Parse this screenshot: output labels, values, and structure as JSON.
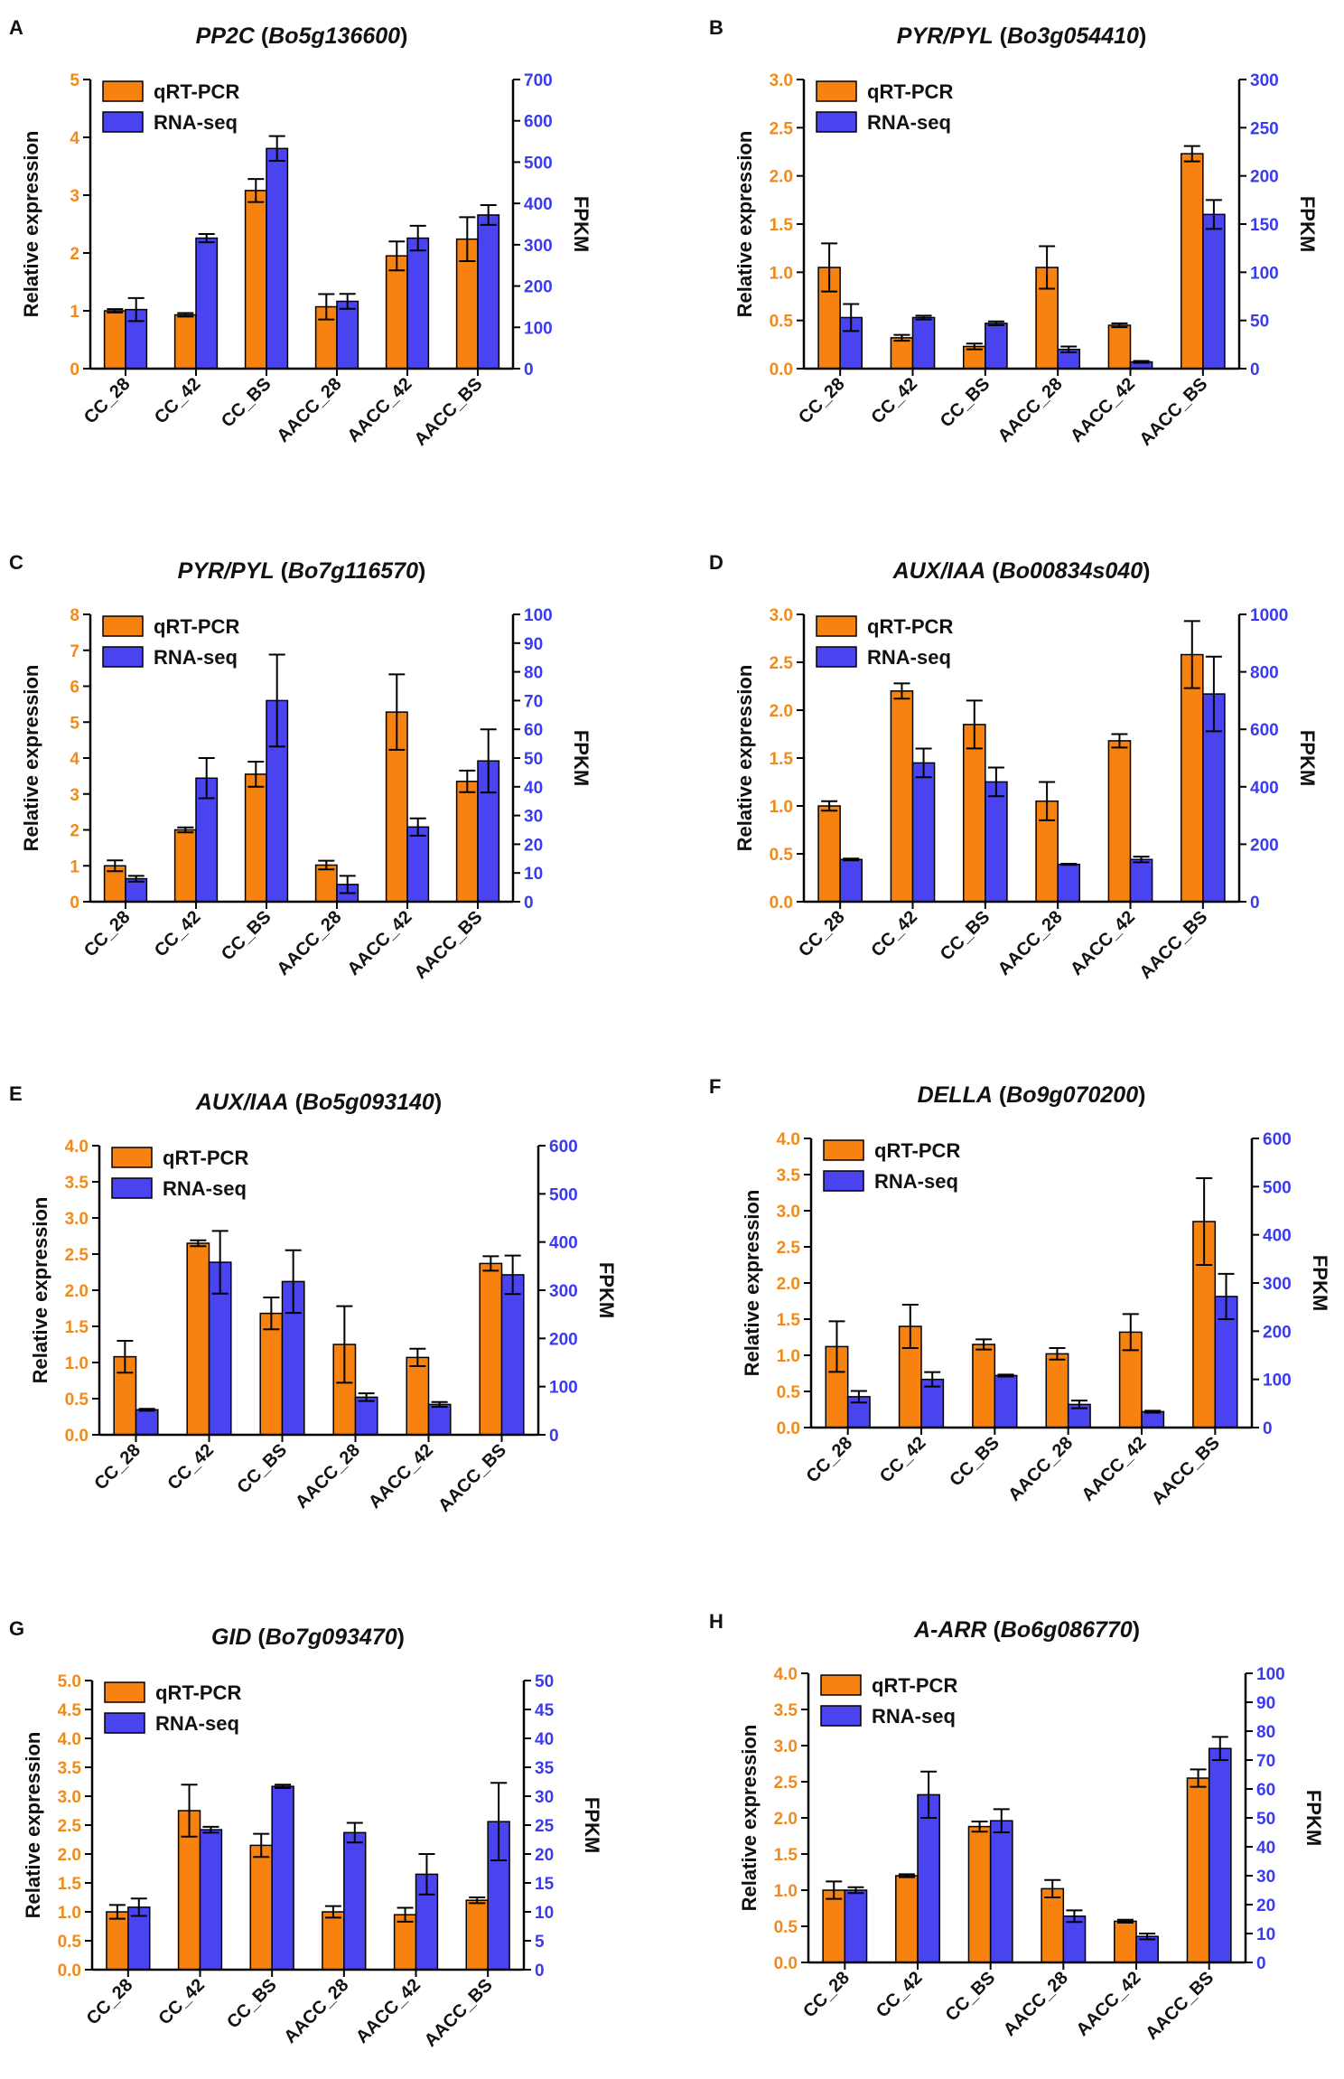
{
  "colors": {
    "left_axis": "#F08A1D",
    "right_axis": "#3B3BEE",
    "bar_q": "#F7820F",
    "bar_r": "#4A44F0",
    "text": "#111111"
  },
  "chart_data": [
    {
      "panel": "A",
      "type": "bar",
      "title_gene": "PP2C",
      "title_id": "Bo5g136600",
      "categories": [
        "CC_28",
        "CC_42",
        "CC_BS",
        "AACC_28",
        "AACC_42",
        "AACC_BS"
      ],
      "ylabel": "Relative expression",
      "y2label": "FPKM",
      "ylim": [
        0,
        5
      ],
      "yticks": [
        "0",
        "1",
        "2",
        "3",
        "4",
        "5"
      ],
      "y2lim": [
        0,
        700
      ],
      "y2ticks": [
        "0",
        "100",
        "200",
        "300",
        "400",
        "500",
        "600",
        "700"
      ],
      "legend": [
        "qRT-PCR",
        "RNA-seq"
      ],
      "series": [
        {
          "name": "qRT-PCR",
          "values": [
            1.0,
            0.93,
            3.08,
            1.07,
            1.95,
            2.24
          ],
          "errors": [
            0.03,
            0.03,
            0.2,
            0.22,
            0.25,
            0.38
          ]
        },
        {
          "name": "RNA-seq",
          "values": [
            143,
            316,
            533,
            163,
            316,
            372
          ],
          "errors": [
            28,
            10,
            30,
            18,
            30,
            24
          ]
        }
      ]
    },
    {
      "panel": "B",
      "type": "bar",
      "title_gene": "PYR/PYL",
      "title_id": "Bo3g054410",
      "categories": [
        "CC_28",
        "CC_42",
        "CC_BS",
        "AACC_28",
        "AACC_42",
        "AACC_BS"
      ],
      "ylabel": "Relative expression",
      "y2label": "FPKM",
      "ylim": [
        0,
        3
      ],
      "yticks": [
        "0.0",
        "0.5",
        "1.0",
        "1.5",
        "2.0",
        "2.5",
        "3.0"
      ],
      "y2lim": [
        0,
        300
      ],
      "y2ticks": [
        "0",
        "50",
        "100",
        "150",
        "200",
        "250",
        "300"
      ],
      "legend": [
        "qRT-PCR",
        "RNA-seq"
      ],
      "series": [
        {
          "name": "qRT-PCR",
          "values": [
            1.05,
            0.32,
            0.23,
            1.05,
            0.45,
            2.23
          ],
          "errors": [
            0.25,
            0.03,
            0.03,
            0.22,
            0.02,
            0.08
          ]
        },
        {
          "name": "RNA-seq",
          "values": [
            53,
            53,
            47,
            20,
            7,
            160
          ],
          "errors": [
            14,
            2,
            2,
            3,
            1,
            15
          ]
        }
      ]
    },
    {
      "panel": "C",
      "type": "bar",
      "title_gene": "PYR/PYL",
      "title_id": "Bo7g116570",
      "categories": [
        "CC_28",
        "CC_42",
        "CC_BS",
        "AACC_28",
        "AACC_42",
        "AACC_BS"
      ],
      "ylabel": "Relative expression",
      "y2label": "FPKM",
      "ylim": [
        0,
        8
      ],
      "yticks": [
        "0",
        "1",
        "2",
        "3",
        "4",
        "5",
        "6",
        "7",
        "8"
      ],
      "y2lim": [
        0,
        100
      ],
      "y2ticks": [
        "0",
        "10",
        "20",
        "30",
        "40",
        "50",
        "60",
        "70",
        "80",
        "90",
        "100"
      ],
      "legend": [
        "qRT-PCR",
        "RNA-seq"
      ],
      "series": [
        {
          "name": "qRT-PCR",
          "values": [
            1.0,
            2.0,
            3.55,
            1.02,
            5.28,
            3.35
          ],
          "errors": [
            0.15,
            0.07,
            0.35,
            0.12,
            1.05,
            0.3
          ]
        },
        {
          "name": "RNA-seq",
          "values": [
            8,
            43,
            70,
            6,
            26,
            49
          ],
          "errors": [
            1,
            7,
            16,
            3,
            3,
            11
          ]
        }
      ]
    },
    {
      "panel": "D",
      "type": "bar",
      "title_gene": "AUX/IAA",
      "title_id": "Bo00834s040",
      "categories": [
        "CC_28",
        "CC_42",
        "CC_BS",
        "AACC_28",
        "AACC_42",
        "AACC_BS"
      ],
      "ylabel": "Relative expression",
      "y2label": "FPKM",
      "ylim": [
        0,
        3
      ],
      "yticks": [
        "0.0",
        "0.5",
        "1.0",
        "1.5",
        "2.0",
        "2.5",
        "3.0"
      ],
      "y2lim": [
        0,
        1000
      ],
      "y2ticks": [
        "0",
        "200",
        "400",
        "600",
        "800",
        "1000"
      ],
      "legend": [
        "qRT-PCR",
        "RNA-seq"
      ],
      "series": [
        {
          "name": "qRT-PCR",
          "values": [
            1.0,
            2.2,
            1.85,
            1.05,
            1.68,
            2.58
          ],
          "errors": [
            0.05,
            0.08,
            0.25,
            0.2,
            0.07,
            0.35
          ]
        },
        {
          "name": "RNA-seq",
          "values": [
            147,
            483,
            417,
            130,
            147,
            723
          ],
          "errors": [
            3,
            50,
            50,
            2,
            10,
            130
          ]
        }
      ]
    },
    {
      "panel": "E",
      "type": "bar",
      "title_gene": "AUX/IAA",
      "title_id": "Bo5g093140",
      "categories": [
        "CC_28",
        "CC_42",
        "CC_BS",
        "AACC_28",
        "AACC_42",
        "AACC_BS"
      ],
      "ylabel": "Relative expression",
      "y2label": "FPKM",
      "ylim": [
        0,
        4
      ],
      "yticks": [
        "0.0",
        "0.5",
        "1.0",
        "1.5",
        "2.0",
        "2.5",
        "3.0",
        "3.5",
        "4.0"
      ],
      "y2lim": [
        0,
        600
      ],
      "y2ticks": [
        "0",
        "100",
        "200",
        "300",
        "400",
        "500",
        "600"
      ],
      "legend": [
        "qRT-PCR",
        "RNA-seq"
      ],
      "series": [
        {
          "name": "qRT-PCR",
          "values": [
            1.08,
            2.65,
            1.68,
            1.25,
            1.07,
            2.37
          ],
          "errors": [
            0.22,
            0.04,
            0.22,
            0.53,
            0.12,
            0.1
          ]
        },
        {
          "name": "RNA-seq",
          "values": [
            52,
            358,
            318,
            78,
            63,
            332
          ],
          "errors": [
            2,
            65,
            65,
            8,
            5,
            40
          ]
        }
      ]
    },
    {
      "panel": "F",
      "type": "bar",
      "title_gene": "DELLA",
      "title_id": "Bo9g070200",
      "categories": [
        "CC_28",
        "CC_42",
        "CC_BS",
        "AACC_28",
        "AACC_42",
        "AACC_BS"
      ],
      "ylabel": "Relative expression",
      "y2label": "FPKM",
      "ylim": [
        0,
        4
      ],
      "yticks": [
        "0.0",
        "0.5",
        "1.0",
        "1.5",
        "2.0",
        "2.5",
        "3.0",
        "3.5",
        "4.0"
      ],
      "y2lim": [
        0,
        600
      ],
      "y2ticks": [
        "0",
        "100",
        "200",
        "300",
        "400",
        "500",
        "600"
      ],
      "legend": [
        "qRT-PCR",
        "RNA-seq"
      ],
      "series": [
        {
          "name": "qRT-PCR",
          "values": [
            1.12,
            1.4,
            1.15,
            1.02,
            1.32,
            2.85
          ],
          "errors": [
            0.35,
            0.3,
            0.07,
            0.08,
            0.25,
            0.6
          ]
        },
        {
          "name": "RNA-seq",
          "values": [
            64,
            100,
            108,
            48,
            33,
            272
          ],
          "errors": [
            12,
            15,
            2,
            8,
            2,
            47
          ]
        }
      ]
    },
    {
      "panel": "G",
      "type": "bar",
      "title_gene": "GID",
      "title_id": "Bo7g093470",
      "categories": [
        "CC_28",
        "CC_42",
        "CC_BS",
        "AACC_28",
        "AACC_42",
        "AACC_BS"
      ],
      "ylabel": "Relative expression",
      "y2label": "FPKM",
      "ylim": [
        0,
        5
      ],
      "yticks": [
        "0.0",
        "0.5",
        "1.0",
        "1.5",
        "2.0",
        "2.5",
        "3.0",
        "3.5",
        "4.0",
        "4.5",
        "5.0"
      ],
      "y2lim": [
        0,
        50
      ],
      "y2ticks": [
        "0",
        "5",
        "10",
        "15",
        "20",
        "25",
        "30",
        "35",
        "40",
        "45",
        "50"
      ],
      "legend": [
        "qRT-PCR",
        "RNA-seq"
      ],
      "series": [
        {
          "name": "qRT-PCR",
          "values": [
            1.0,
            2.75,
            2.15,
            1.0,
            0.95,
            1.2
          ],
          "errors": [
            0.12,
            0.45,
            0.2,
            0.1,
            0.12,
            0.05
          ]
        },
        {
          "name": "RNA-seq",
          "values": [
            10.8,
            24.2,
            31.7,
            23.7,
            16.5,
            25.6
          ],
          "errors": [
            1.5,
            0.5,
            0.3,
            1.7,
            3.5,
            6.7
          ]
        }
      ]
    },
    {
      "panel": "H",
      "type": "bar",
      "title_gene": "A-ARR",
      "title_id": "Bo6g086770",
      "categories": [
        "CC_28",
        "CC_42",
        "CC_BS",
        "AACC_28",
        "AACC_42",
        "AACC_BS"
      ],
      "ylabel": "Relative expression",
      "y2label": "FPKM",
      "ylim": [
        0,
        4
      ],
      "yticks": [
        "0.0",
        "0.5",
        "1.0",
        "1.5",
        "2.0",
        "2.5",
        "3.0",
        "3.5",
        "4.0"
      ],
      "y2lim": [
        0,
        100
      ],
      "y2ticks": [
        "0",
        "10",
        "20",
        "30",
        "40",
        "50",
        "60",
        "70",
        "80",
        "90",
        "100"
      ],
      "legend": [
        "qRT-PCR",
        "RNA-seq"
      ],
      "series": [
        {
          "name": "qRT-PCR",
          "values": [
            1.0,
            1.2,
            1.88,
            1.02,
            0.57,
            2.55
          ],
          "errors": [
            0.12,
            0.02,
            0.07,
            0.12,
            0.02,
            0.12
          ]
        },
        {
          "name": "RNA-seq",
          "values": [
            25,
            58,
            49,
            16,
            9,
            74
          ],
          "errors": [
            1,
            8,
            4,
            2,
            1,
            4
          ]
        }
      ]
    }
  ]
}
